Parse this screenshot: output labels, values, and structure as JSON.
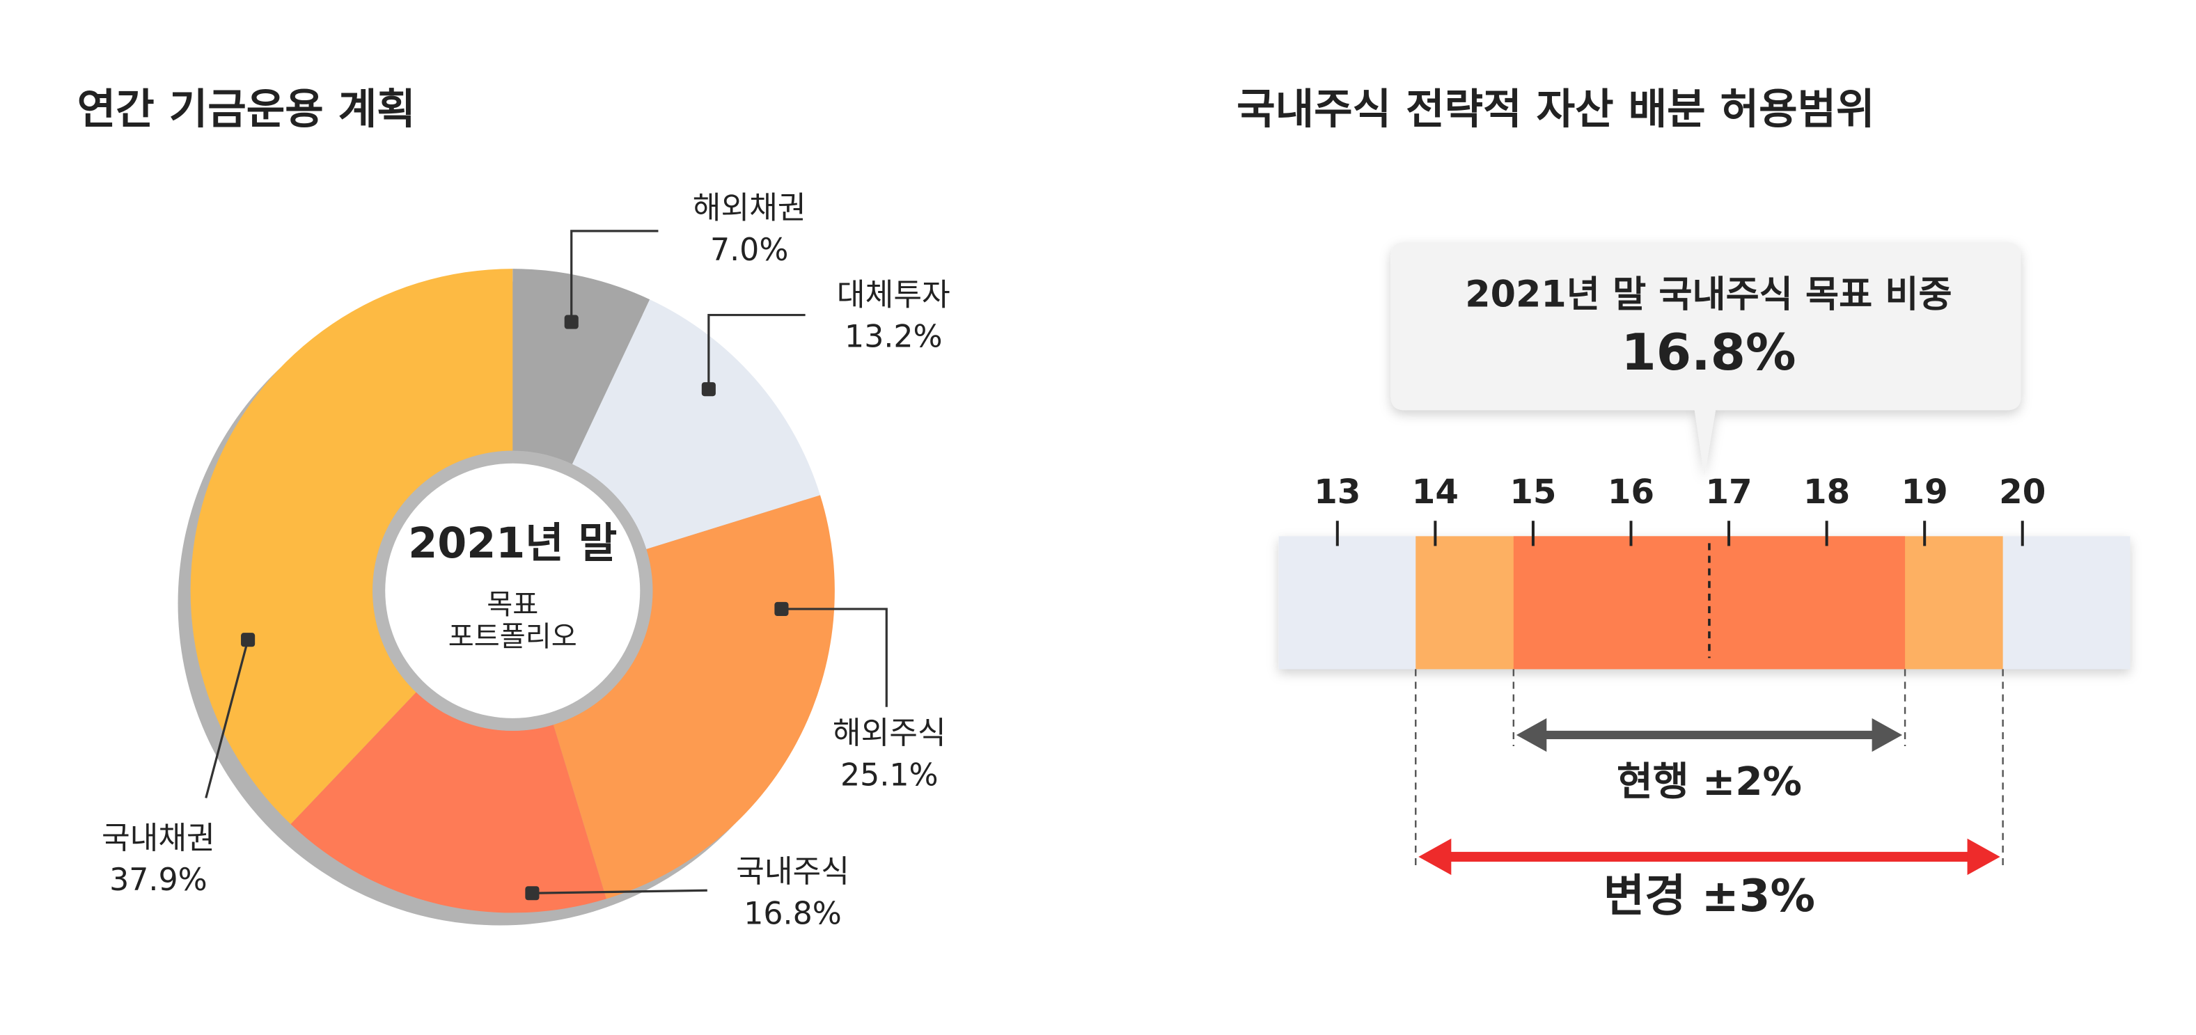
{
  "chart_data": [
    {
      "type": "pie",
      "title": "연간 기금운용 계획",
      "center_text": [
        "2021년 말",
        "목표",
        "포트폴리오"
      ],
      "categories": [
        "해외채권",
        "대체투자",
        "해외주식",
        "국내주식",
        "국내채권"
      ],
      "values": [
        7.0,
        13.2,
        25.1,
        16.8,
        37.9
      ],
      "value_labels": [
        "7.0%",
        "13.2%",
        "25.1%",
        "16.8%",
        "37.9%"
      ],
      "colors": [
        "#a6a6a6",
        "#e5eaf2",
        "#fd9b50",
        "#fe7b56",
        "#fdba43"
      ]
    },
    {
      "type": "range",
      "title": "국내주식 전략적 자산 배분 허용범위",
      "xlim": [
        12.4,
        21.1
      ],
      "xticks": [
        13,
        14,
        15,
        16,
        17,
        18,
        19,
        20
      ],
      "target": 16.8,
      "target_label": "2021년 말 국내주식 목표 비중",
      "target_value_label": "16.8%",
      "bands": [
        {
          "label": "변경 ±3%",
          "range": [
            13.8,
            19.8
          ],
          "color": "#fdb062",
          "arrow_color": "#ee2b2b"
        },
        {
          "label": "현행 ±2%",
          "range": [
            14.8,
            18.8
          ],
          "color": "#fe7f4f",
          "arrow_color": "#555555"
        }
      ]
    }
  ]
}
